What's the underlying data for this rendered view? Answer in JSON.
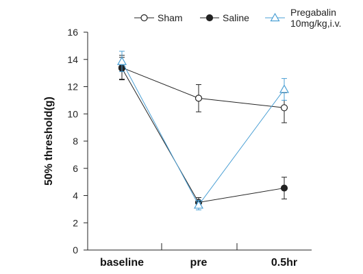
{
  "chart_data": {
    "type": "line",
    "title": "",
    "xlabel": "",
    "ylabel": "50% threshold(g)",
    "categories": [
      "baseline",
      "pre",
      "0.5hr"
    ],
    "ylim": [
      0,
      16
    ],
    "yticks": [
      0,
      2,
      4,
      6,
      8,
      10,
      12,
      14,
      16
    ],
    "grid": false,
    "legend_position": "top",
    "series": [
      {
        "name": "Sham",
        "marker": "circle-open",
        "color": "#222222",
        "values": [
          13.4,
          11.15,
          10.45
        ],
        "errors": [
          0.9,
          1.0,
          1.1
        ]
      },
      {
        "name": "Saline",
        "marker": "circle-filled",
        "color": "#222222",
        "values": [
          13.35,
          3.5,
          4.55
        ],
        "errors": [
          0.8,
          0.35,
          0.8
        ]
      },
      {
        "name": "Pregabalin",
        "name_line2": "10mg/kg,i.v.",
        "marker": "triangle-open",
        "color": "#4a9fd4",
        "values": [
          13.85,
          3.3,
          11.8
        ],
        "errors": [
          0.75,
          0.35,
          0.8
        ]
      }
    ]
  }
}
